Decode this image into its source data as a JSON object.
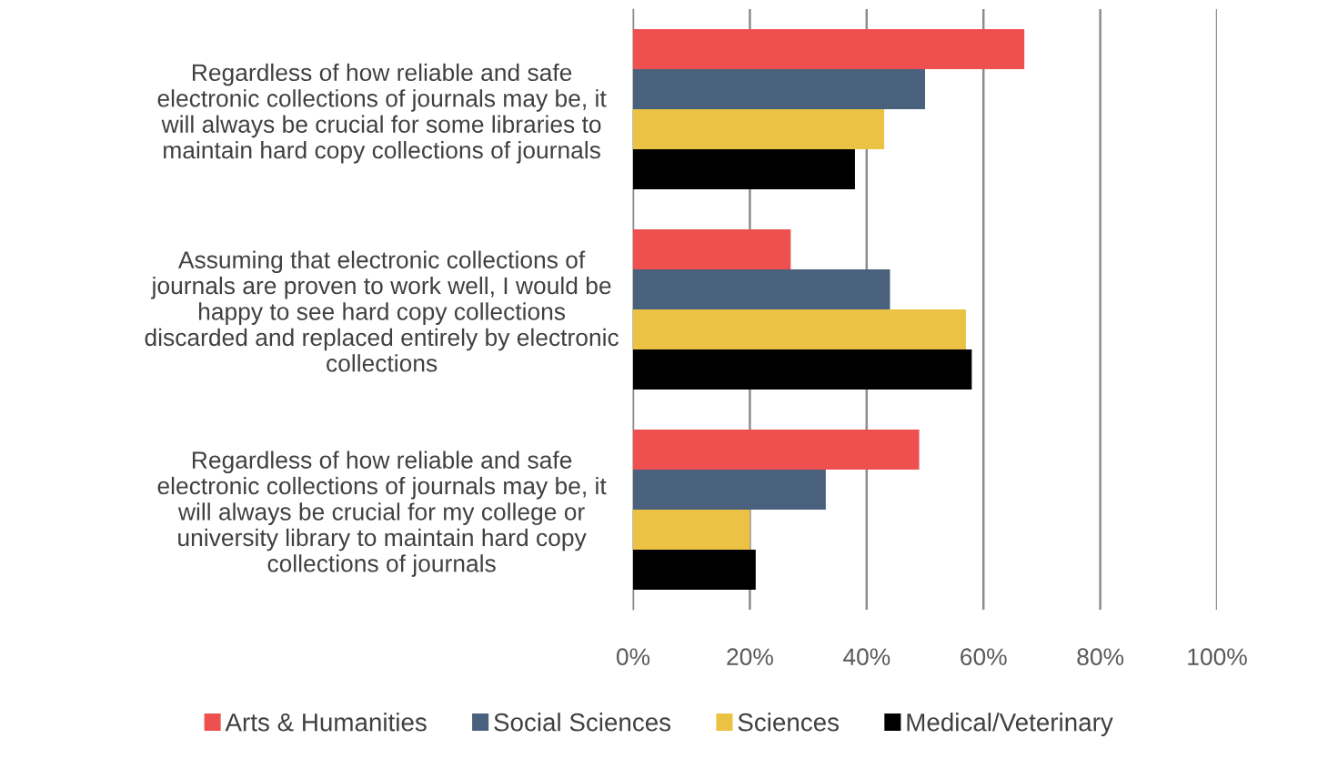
{
  "chart_data": {
    "type": "bar",
    "orientation": "horizontal",
    "categories": [
      "Regardless of how reliable and safe\nelectronic collections of journals may be, it\nwill always be crucial for some libraries to\nmaintain hard copy collections of journals",
      "Assuming that electronic collections of\njournals are proven to work well, I would be\nhappy to see hard copy collections\ndiscarded and replaced entirely by electronic\ncollections",
      "Regardless of how reliable and safe\nelectronic collections of journals may be, it\nwill always be crucial for my college or\nuniversity library to maintain hard copy\ncollections of journals"
    ],
    "series": [
      {
        "name": "Arts & Humanities",
        "color": "#ee5050",
        "values": [
          67,
          27,
          49
        ]
      },
      {
        "name": "Social Sciences",
        "color": "#4a617d",
        "values": [
          50,
          44,
          33
        ]
      },
      {
        "name": "Sciences",
        "color": "#ecc244",
        "values": [
          43,
          57,
          20
        ]
      },
      {
        "name": "Medical/Veterinary",
        "color": "#000000",
        "values": [
          38,
          58,
          21
        ]
      }
    ],
    "xlim": [
      0,
      100
    ],
    "xticks": [
      {
        "value": 0,
        "label": "0%"
      },
      {
        "value": 20,
        "label": "20%"
      },
      {
        "value": 40,
        "label": "40%"
      },
      {
        "value": 60,
        "label": "60%"
      },
      {
        "value": 80,
        "label": "80%"
      },
      {
        "value": 100,
        "label": "100%"
      }
    ],
    "grid": "x",
    "legend": "bottom"
  }
}
